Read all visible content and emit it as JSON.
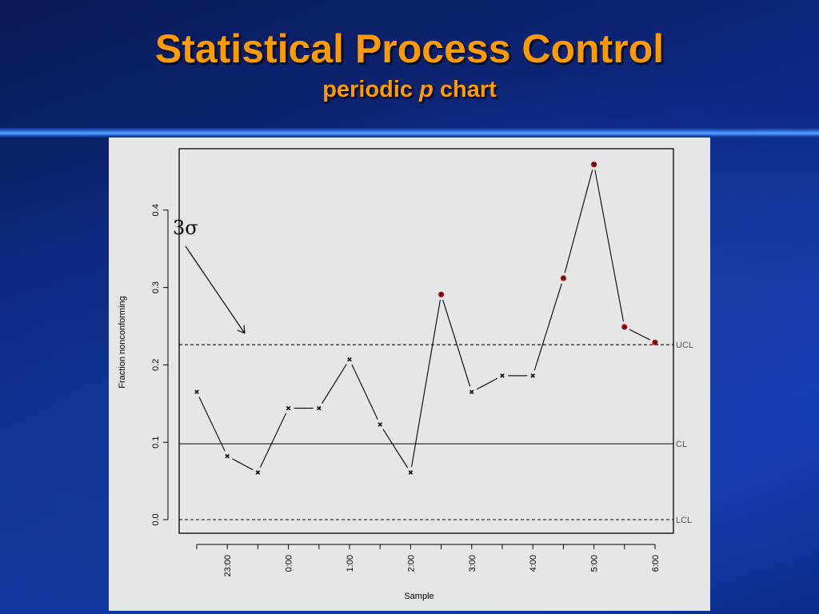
{
  "slide": {
    "title": "Statistical Process Control",
    "subtitle_pre": "periodic ",
    "subtitle_italic": "p",
    "subtitle_post": " chart"
  },
  "colors": {
    "title": "#ff9a00",
    "background_dark": "#0a1a55",
    "background_light": "#1242b8",
    "panel": "#e6e6e6",
    "in_control_point": "#000000",
    "out_of_control_point": "#e00000",
    "control_line_label": "#555555"
  },
  "chart_data": {
    "type": "line",
    "title": "",
    "xlabel": "Sample",
    "ylabel": "Fraction nonconforming",
    "ylim": [
      0,
      0.48
    ],
    "yticks": [
      0.0,
      0.1,
      0.2,
      0.3,
      0.4
    ],
    "ytick_labels": [
      "0.0",
      "0.1",
      "0.2",
      "0.3",
      "0.4"
    ],
    "x": [
      1,
      2,
      3,
      4,
      5,
      6,
      7,
      8,
      9,
      10,
      11,
      12,
      13,
      14,
      15,
      16
    ],
    "xticks": [
      1,
      2,
      3,
      4,
      5,
      6,
      7,
      8,
      9,
      10,
      11,
      12,
      13,
      14,
      15,
      16
    ],
    "xtick_labels": [
      "",
      "23:00",
      "",
      "0:00",
      "",
      "1:00",
      "",
      "2:00",
      "",
      "3:00",
      "",
      "4:00",
      "",
      "5:00",
      "",
      "6:00"
    ],
    "values": [
      0.165,
      0.082,
      0.061,
      0.144,
      0.144,
      0.207,
      0.123,
      0.061,
      0.291,
      0.165,
      0.186,
      0.186,
      0.312,
      0.459,
      0.249,
      0.229
    ],
    "out_of_control": [
      false,
      false,
      false,
      false,
      false,
      false,
      false,
      false,
      true,
      false,
      false,
      false,
      true,
      true,
      true,
      true
    ],
    "control_lines": [
      {
        "name": "UCL",
        "value": 0.226,
        "style": "dashed"
      },
      {
        "name": "CL",
        "value": 0.098,
        "style": "solid"
      },
      {
        "name": "LCL",
        "value": 0.0,
        "style": "dashed"
      }
    ],
    "annotation": {
      "text": "3σ",
      "points_to": "UCL"
    },
    "grid": false,
    "legend": "none"
  }
}
